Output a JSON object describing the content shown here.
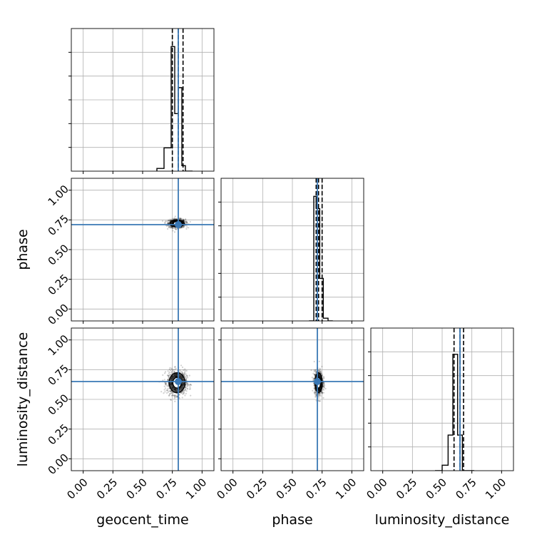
{
  "chart_data": {
    "type": "corner",
    "parameters": [
      "geocent_time",
      "phase",
      "luminosity_distance"
    ],
    "axis_range": [
      -0.1,
      1.1
    ],
    "ticks": [
      0.0,
      0.25,
      0.5,
      0.75,
      1.0
    ],
    "tick_labels": [
      "0.00",
      "0.25",
      "0.50",
      "0.75",
      "1.00"
    ],
    "injection": {
      "geocent_time": 0.8,
      "phase": 0.71,
      "luminosity_distance": 0.65
    },
    "colors": {
      "truth": "#3a78b5",
      "hist": "#000000",
      "grid": "#b0b0b0",
      "points": "#000000"
    },
    "histograms": [
      {
        "parameter": "geocent_time",
        "edges": [
          0.62,
          0.68,
          0.74,
          0.77,
          0.8,
          0.83,
          0.86,
          0.92
        ],
        "heights": [
          0.02,
          0.17,
          0.91,
          0.42,
          0.61,
          0.04,
          0.0
        ],
        "quantiles": [
          0.75,
          0.8,
          0.84
        ]
      },
      {
        "parameter": "phase",
        "edges": [
          0.64,
          0.68,
          0.7,
          0.73,
          0.76,
          0.8,
          0.84
        ],
        "heights": [
          0.0,
          0.91,
          0.82,
          0.31,
          0.02,
          0.0
        ],
        "quantiles": [
          0.7,
          0.72,
          0.75
        ]
      },
      {
        "parameter": "luminosity_distance",
        "edges": [
          0.44,
          0.5,
          0.55,
          0.59,
          0.63,
          0.67,
          0.72,
          0.77
        ],
        "heights": [
          0.0,
          0.04,
          0.26,
          0.85,
          0.26,
          0.0,
          0.0
        ],
        "quantiles": [
          0.6,
          0.65,
          0.68
        ]
      }
    ],
    "scatter_panels": [
      {
        "x": "geocent_time",
        "y": "phase",
        "center": [
          0.79,
          0.72
        ],
        "spread": [
          0.035,
          0.018
        ]
      },
      {
        "x": "geocent_time",
        "y": "luminosity_distance",
        "center": [
          0.79,
          0.64
        ],
        "spread": [
          0.04,
          0.05
        ]
      },
      {
        "x": "phase",
        "y": "luminosity_distance",
        "center": [
          0.72,
          0.64
        ],
        "spread": [
          0.018,
          0.05
        ]
      }
    ],
    "xlabels": [
      "geocent_time",
      "phase",
      "luminosity_distance"
    ],
    "ylabels": [
      "",
      "phase",
      "luminosity_distance"
    ]
  }
}
